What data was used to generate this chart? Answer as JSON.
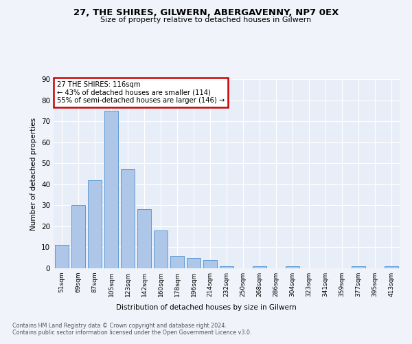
{
  "title1": "27, THE SHIRES, GILWERN, ABERGAVENNY, NP7 0EX",
  "title2": "Size of property relative to detached houses in Gilwern",
  "xlabel": "Distribution of detached houses by size in Gilwern",
  "ylabel": "Number of detached properties",
  "footer1": "Contains HM Land Registry data © Crown copyright and database right 2024.",
  "footer2": "Contains public sector information licensed under the Open Government Licence v3.0.",
  "categories": [
    "51sqm",
    "69sqm",
    "87sqm",
    "105sqm",
    "123sqm",
    "142sqm",
    "160sqm",
    "178sqm",
    "196sqm",
    "214sqm",
    "232sqm",
    "250sqm",
    "268sqm",
    "286sqm",
    "304sqm",
    "323sqm",
    "341sqm",
    "359sqm",
    "377sqm",
    "395sqm",
    "413sqm"
  ],
  "values": [
    11,
    30,
    42,
    75,
    47,
    28,
    18,
    6,
    5,
    4,
    1,
    0,
    1,
    0,
    1,
    0,
    0,
    0,
    1,
    0,
    1
  ],
  "bar_color": "#aec6e8",
  "bar_edge_color": "#5b9bd5",
  "annotation_text": "27 THE SHIRES: 116sqm\n← 43% of detached houses are smaller (114)\n55% of semi-detached houses are larger (146) →",
  "annotation_box_color": "#ffffff",
  "annotation_box_edge_color": "#cc0000",
  "ylim": [
    0,
    90
  ],
  "yticks": [
    0,
    10,
    20,
    30,
    40,
    50,
    60,
    70,
    80,
    90
  ],
  "bg_color": "#f0f4fa",
  "plot_bg_color": "#e8eef8"
}
